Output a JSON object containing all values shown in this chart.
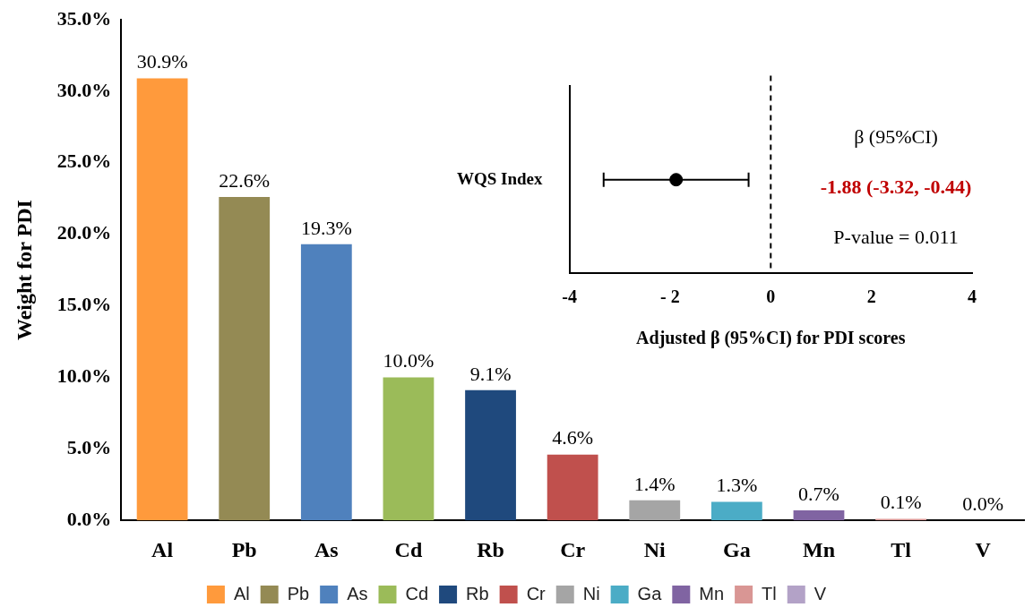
{
  "chart_data": [
    {
      "type": "bar",
      "ylabel": "Weight for PDI",
      "categories": [
        "Al",
        "Pb",
        "As",
        "Cd",
        "Rb",
        "Cr",
        "Ni",
        "Ga",
        "Mn",
        "Tl",
        "V"
      ],
      "series": [
        {
          "name": "Al",
          "color": "#ff9a3c",
          "values": [
            30.9,
            null,
            null,
            null,
            null,
            null,
            null,
            null,
            null,
            null,
            null
          ],
          "value_labels": [
            "30.9%",
            null,
            null,
            null,
            null,
            null,
            null,
            null,
            null,
            null,
            null
          ]
        },
        {
          "name": "Pb",
          "color": "#948a54",
          "values": [
            null,
            22.6,
            null,
            null,
            null,
            null,
            null,
            null,
            null,
            null,
            null
          ],
          "value_labels": [
            null,
            "22.6%",
            null,
            null,
            null,
            null,
            null,
            null,
            null,
            null,
            null
          ]
        },
        {
          "name": "As",
          "color": "#4f81bd",
          "values": [
            null,
            null,
            19.3,
            null,
            null,
            null,
            null,
            null,
            null,
            null,
            null
          ],
          "value_labels": [
            null,
            null,
            "19.3%",
            null,
            null,
            null,
            null,
            null,
            null,
            null,
            null
          ]
        },
        {
          "name": "Cd",
          "color": "#9bbb59",
          "values": [
            null,
            null,
            null,
            10.0,
            null,
            null,
            null,
            null,
            null,
            null,
            null
          ],
          "value_labels": [
            null,
            null,
            null,
            "10.0%",
            null,
            null,
            null,
            null,
            null,
            null,
            null
          ]
        },
        {
          "name": "Rb",
          "color": "#1f497d",
          "values": [
            null,
            null,
            null,
            null,
            9.1,
            null,
            null,
            null,
            null,
            null,
            null
          ],
          "value_labels": [
            null,
            null,
            null,
            null,
            "9.1%",
            null,
            null,
            null,
            null,
            null,
            null
          ]
        },
        {
          "name": "Cr",
          "color": "#c0504d",
          "values": [
            null,
            null,
            null,
            null,
            null,
            4.6,
            null,
            null,
            null,
            null,
            null
          ],
          "value_labels": [
            null,
            null,
            null,
            null,
            null,
            "4.6%",
            null,
            null,
            null,
            null,
            null
          ]
        },
        {
          "name": "Ni",
          "color": "#a5a5a5",
          "values": [
            null,
            null,
            null,
            null,
            null,
            null,
            1.4,
            null,
            null,
            null,
            null
          ],
          "value_labels": [
            null,
            null,
            null,
            null,
            null,
            null,
            "1.4%",
            null,
            null,
            null,
            null
          ]
        },
        {
          "name": "Ga",
          "color": "#4bacc6",
          "values": [
            null,
            null,
            null,
            null,
            null,
            null,
            null,
            1.3,
            null,
            null,
            null
          ],
          "value_labels": [
            null,
            null,
            null,
            null,
            null,
            null,
            null,
            "1.3%",
            null,
            null,
            null
          ]
        },
        {
          "name": "Mn",
          "color": "#8064a2",
          "values": [
            null,
            null,
            null,
            null,
            null,
            null,
            null,
            null,
            0.7,
            null,
            null
          ],
          "value_labels": [
            null,
            null,
            null,
            null,
            null,
            null,
            null,
            null,
            "0.7%",
            null,
            null
          ]
        },
        {
          "name": "Tl",
          "color": "#d99694",
          "values": [
            null,
            null,
            null,
            null,
            null,
            null,
            null,
            null,
            null,
            0.1,
            null
          ],
          "value_labels": [
            null,
            null,
            null,
            null,
            null,
            null,
            null,
            null,
            null,
            "0.1%",
            null
          ]
        },
        {
          "name": "V",
          "color": "#b3a2c7",
          "values": [
            null,
            null,
            null,
            null,
            null,
            null,
            null,
            null,
            null,
            null,
            0.0
          ],
          "value_labels": [
            null,
            null,
            null,
            null,
            null,
            null,
            null,
            null,
            null,
            null,
            "0.0%"
          ]
        }
      ],
      "ylim": [
        0,
        35
      ],
      "yticks": [
        {
          "value": 0,
          "label": "0.0%"
        },
        {
          "value": 5,
          "label": "5.0%"
        },
        {
          "value": 10,
          "label": "10.0%"
        },
        {
          "value": 15,
          "label": "15.0%"
        },
        {
          "value": 20,
          "label": "20.0%"
        },
        {
          "value": 25,
          "label": "25.0%"
        },
        {
          "value": 30,
          "label": "30.0%"
        },
        {
          "value": 35,
          "label": "35.0%"
        }
      ],
      "legend": "bottom"
    },
    {
      "type": "scatter",
      "orientation": "horizontal",
      "categories": [
        "WQS Index"
      ],
      "values": [
        -1.88
      ],
      "errors": [
        [
          -3.32,
          -0.44
        ]
      ],
      "color": "#000000",
      "marker": "circle",
      "xlim": [
        -4,
        4
      ],
      "xticks": [
        -4,
        {
          "value": -2,
          "label": "- 2"
        },
        0,
        2,
        4
      ],
      "xlabel": "Adjusted β (95%CI) for PDI scores",
      "ref_lines": [
        {
          "axis": "x",
          "value": 0,
          "line_style": "dashed",
          "color": "#000000"
        }
      ],
      "annotations": [
        "β (95%CI)",
        "-1.88 (-3.32, -0.44)",
        "P-value = 0.011"
      ]
    }
  ]
}
